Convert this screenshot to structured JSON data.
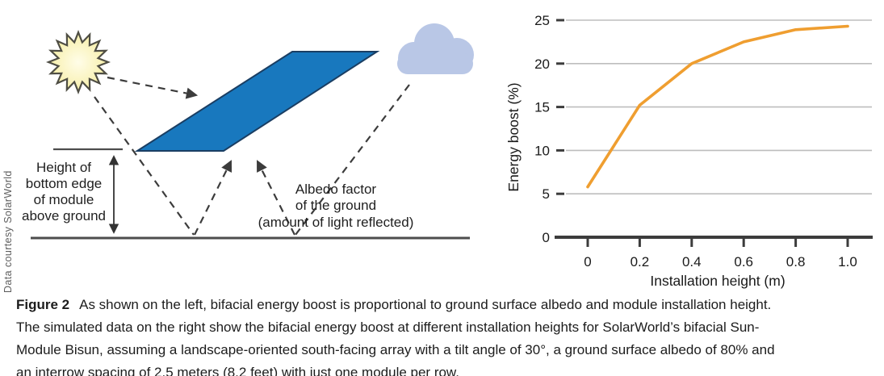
{
  "credit": "Data courtesy SolarWorld",
  "diagram": {
    "icons": [
      "sun-icon",
      "cloud-icon",
      "module-panel"
    ],
    "height_label_lines": [
      "Height of",
      "bottom edge",
      "of module",
      "above ground"
    ],
    "albedo_label_lines": [
      "Albedo factor",
      "of the ground",
      "(amount of light reflected)"
    ],
    "colors": {
      "module_fill": "#1878BE",
      "module_stroke": "#1A3E63",
      "cloud_fill": "#B9C7E6",
      "sun_fill": "#F6EFA0",
      "sun_core": "#FFFDE8",
      "sun_stroke": "#4F4E44",
      "ray_dark": "#3C3C3C",
      "ground": "#4D4D4D"
    }
  },
  "chart_data": {
    "type": "line",
    "title": "",
    "xlabel": "Installation height (m)",
    "ylabel": "Energy boost (%)",
    "x": [
      0,
      0.2,
      0.4,
      0.6,
      0.8,
      1.0
    ],
    "y": [
      5.8,
      15.2,
      20.0,
      22.5,
      23.9,
      24.3
    ],
    "xticks": [
      "0",
      "0.2",
      "0.4",
      "0.6",
      "0.8",
      "1.0"
    ],
    "xtick_values": [
      0,
      0.2,
      0.4,
      0.6,
      0.8,
      1.0
    ],
    "yticks": [
      0,
      5,
      10,
      15,
      20,
      25
    ],
    "xlim": [
      0,
      1.0
    ],
    "ylim": [
      0,
      25
    ],
    "grid": "horizontal",
    "legend": "none",
    "line_color": "#EF9E30",
    "grid_color": "#BDBDBD",
    "axis_color": "#3C3C3C",
    "text_color": "#1A1A1A"
  },
  "caption": {
    "label": "Figure 2",
    "lines": [
      "As shown on the left, bifacial energy boost is proportional to ground surface albedo and module installation height.",
      "The simulated data on the right show the bifacial energy boost at different installation heights for SolarWorld’s bifacial Sun-",
      "Module Bisun, assuming a landscape-oriented south-facing array with a tilt angle of 30°, a ground surface albedo of 80% and",
      "an interrow spacing of 2.5 meters (8.2 feet) with just one module per row."
    ]
  }
}
